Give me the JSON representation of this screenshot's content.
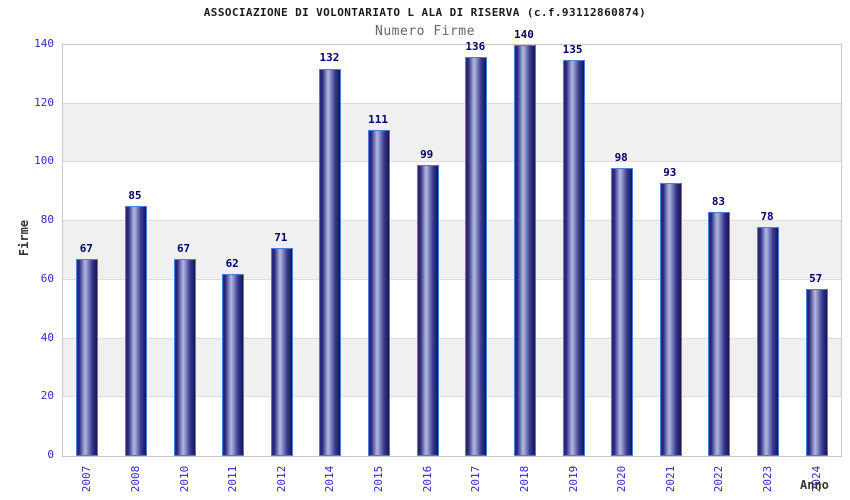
{
  "chart_data": {
    "type": "bar",
    "title": "ASSOCIAZIONE DI VOLONTARIATO L ALA DI RISERVA (c.f.93112860874)",
    "subtitle": "Numero Firme",
    "xlabel": "Anno",
    "ylabel": "Firme",
    "categories": [
      "2007",
      "2008",
      "2010",
      "2011",
      "2012",
      "2014",
      "2015",
      "2016",
      "2017",
      "2018",
      "2019",
      "2020",
      "2021",
      "2022",
      "2023",
      "2024"
    ],
    "values": [
      67,
      85,
      67,
      62,
      71,
      132,
      111,
      99,
      136,
      140,
      135,
      98,
      93,
      83,
      78,
      57
    ],
    "ylim": [
      0,
      140
    ],
    "ytick_step": 20,
    "grid": "horizontal bands alternating white/gray every 20 units with gridlines",
    "legend_position": "none",
    "colors": {
      "bar_dark": "#14145a",
      "bar_highlight": "#b2b8e2",
      "bar_border": "#4d7ce0",
      "value_label": "#000066",
      "tick_label": "#2a2acc",
      "title": "#1a1a1a",
      "subtitle": "#666666",
      "axis_title": "#333333",
      "band_gray": "#f0f0f0",
      "gridline": "#dcdcdc",
      "plot_border": "#c8c8c8"
    }
  }
}
